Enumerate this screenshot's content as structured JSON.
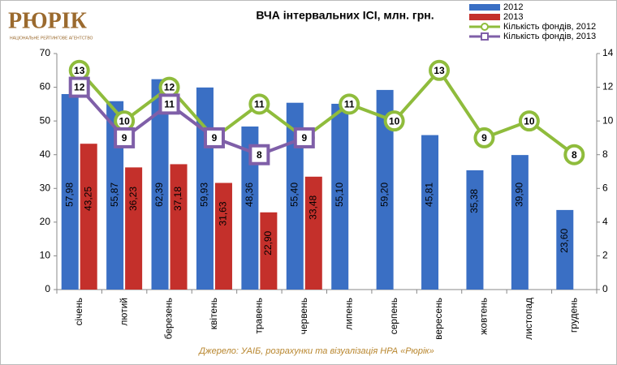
{
  "logo": {
    "name": "РЮРІК",
    "subtitle": "НАЦІОНАЛЬНЕ РЕЙТИНГОВЕ АГЕНТСТВО"
  },
  "chart_data": {
    "type": "bar",
    "title": "ВЧА інтервальних ІСІ, млн. грн.",
    "categories": [
      "січень",
      "лютий",
      "березень",
      "квітень",
      "травень",
      "червень",
      "липень",
      "серпень",
      "вересень",
      "жовтень",
      "листопад",
      "грудень"
    ],
    "series": [
      {
        "name": "2012",
        "color": "#3a6fc4",
        "values": [
          57.98,
          55.87,
          62.39,
          59.93,
          48.36,
          55.4,
          55.1,
          59.2,
          45.81,
          35.38,
          39.9,
          23.6
        ],
        "value_labels": [
          "57,98",
          "55,87",
          "62,39",
          "59,93",
          "48,36",
          "55,40",
          "55,10",
          "59,20",
          "45,81",
          "35,38",
          "39,90",
          "23,60"
        ]
      },
      {
        "name": "2013",
        "color": "#c4302b",
        "values": [
          43.25,
          36.23,
          37.18,
          31.63,
          22.9,
          33.48,
          null,
          null,
          null,
          null,
          null,
          null
        ],
        "value_labels": [
          "43,25",
          "36,23",
          "37,18",
          "31,63",
          "22,90",
          "33,48",
          null,
          null,
          null,
          null,
          null,
          null
        ]
      },
      {
        "name": "Кількість фондів, 2012",
        "type": "line",
        "marker": "circle",
        "axis": "y2",
        "color": "#8fbc3c",
        "values": [
          13,
          10,
          12,
          9,
          11,
          9,
          11,
          10,
          13,
          9,
          10,
          8
        ]
      },
      {
        "name": "Кількість фондів, 2013",
        "type": "line",
        "marker": "square",
        "axis": "y2",
        "color": "#7f5fa8",
        "values": [
          12,
          9,
          11,
          9,
          8,
          9,
          null,
          null,
          null,
          null,
          null,
          null
        ]
      }
    ],
    "ylim": [
      0,
      70
    ],
    "yticks": [
      0,
      10,
      20,
      30,
      40,
      50,
      60,
      70
    ],
    "y2lim": [
      0,
      14
    ],
    "y2ticks": [
      0,
      2,
      4,
      6,
      8,
      10,
      12,
      14
    ],
    "legend": "top-right",
    "source": "Джерело: УАІБ, розрахунки та візуалізація НРА «Рюрік»"
  }
}
